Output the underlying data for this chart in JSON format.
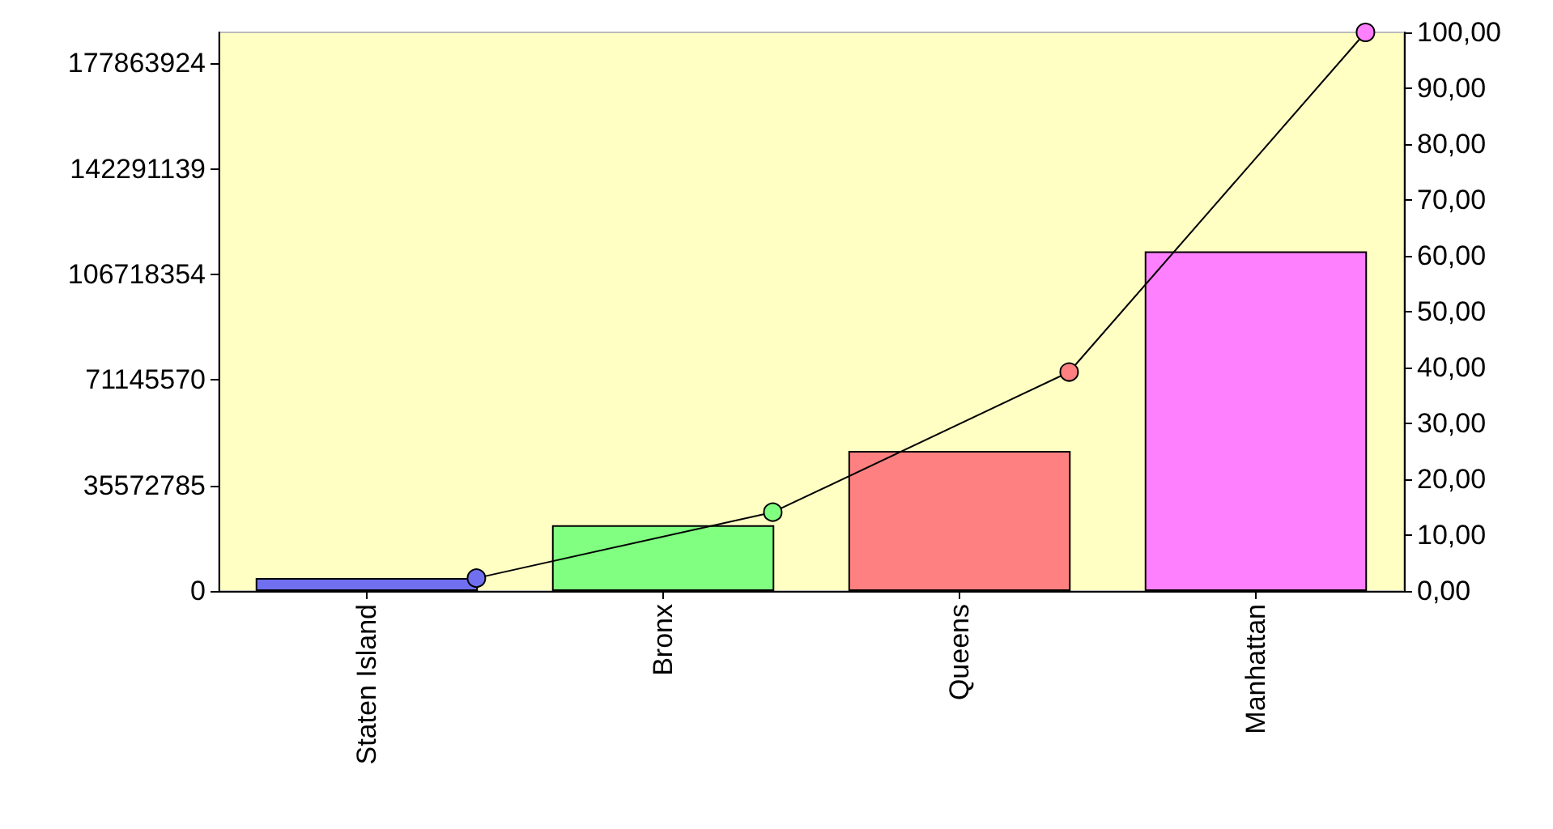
{
  "chart_data": {
    "type": "bar",
    "categories": [
      "Staten Island",
      "Bronx",
      "Queens",
      "Manhattan"
    ],
    "series": [
      {
        "colors": [
          "#6f6fef",
          "#80ff80",
          "#ff8080",
          "#ff80ff"
        ],
        "values": [
          4400000,
          22200000,
          47200000,
          114500000
        ]
      },
      {
        "type": "line",
        "axis": "y2",
        "color": "#000000",
        "marker": "circle",
        "values": [
          2.3,
          14.1,
          39.2,
          100
        ]
      }
    ],
    "ylim": [
      0,
      188300000
    ],
    "yticks": [
      0,
      35572785,
      71145570,
      106718354,
      142291139,
      177863924
    ],
    "y2lim": [
      0,
      100
    ],
    "y2ticks": [
      {
        "value": 0,
        "label": "0,00"
      },
      {
        "value": 10,
        "label": "10,00"
      },
      {
        "value": 20,
        "label": "20,00"
      },
      {
        "value": 30,
        "label": "30,00"
      },
      {
        "value": 40,
        "label": "40,00"
      },
      {
        "value": 50,
        "label": "50,00"
      },
      {
        "value": 60,
        "label": "60,00"
      },
      {
        "value": 70,
        "label": "70,00"
      },
      {
        "value": 80,
        "label": "80,00"
      },
      {
        "value": 90,
        "label": "90,00"
      },
      {
        "value": 100,
        "label": "100,00"
      }
    ],
    "grid": false
  }
}
